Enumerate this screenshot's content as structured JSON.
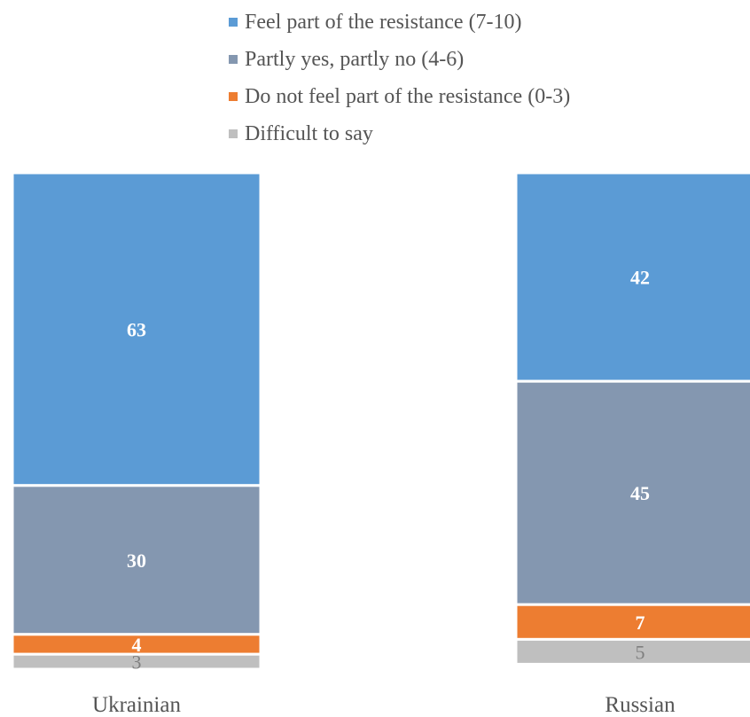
{
  "chart_data": {
    "type": "bar",
    "stacked": true,
    "categories": [
      "Ukrainian",
      "Russian"
    ],
    "series": [
      {
        "name": "Feel part of the resistance (7-10)",
        "values": [
          63,
          42
        ],
        "color": "#5b9bd5"
      },
      {
        "name": "Partly yes, partly no (4-6)",
        "values": [
          30,
          45
        ],
        "color": "#8497b0"
      },
      {
        "name": "Do not feel part of the resistance (0-3)",
        "values": [
          4,
          7
        ],
        "color": "#ed7d31"
      },
      {
        "name": "Difficult to say",
        "values": [
          3,
          5
        ],
        "color": "#bfbfbf"
      }
    ],
    "title": "",
    "xlabel": "",
    "ylabel": "",
    "ylim": [
      0,
      100
    ],
    "legend_position": "top",
    "grid": false
  }
}
